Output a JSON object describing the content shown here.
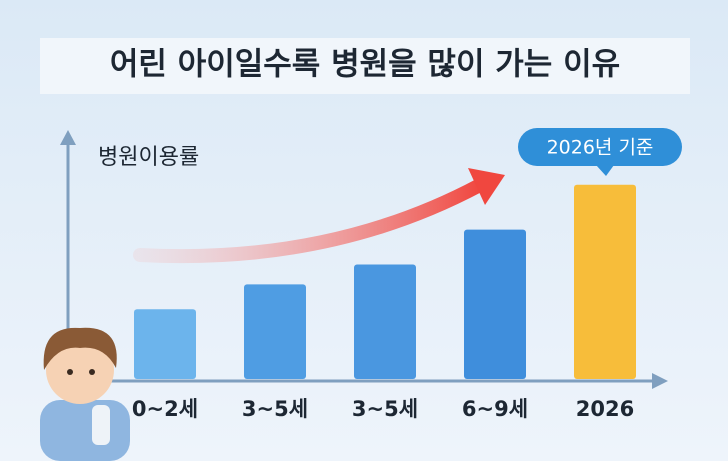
{
  "chart_data": {
    "type": "bar",
    "title": "어린 아이일수록 병원을 많이 가는 이유",
    "y_label": "병원이용률",
    "annotation": "2026년 기준",
    "categories": [
      "0~2세",
      "3~5세",
      "3~5세",
      "6~9세",
      "2026"
    ],
    "values": [
      70,
      95,
      115,
      150,
      195
    ],
    "colors": [
      "#6cb4ec",
      "#4f9de3",
      "#4a97e0",
      "#3f8edc",
      "#f7bd3a"
    ],
    "ylim": [
      0,
      250
    ]
  }
}
